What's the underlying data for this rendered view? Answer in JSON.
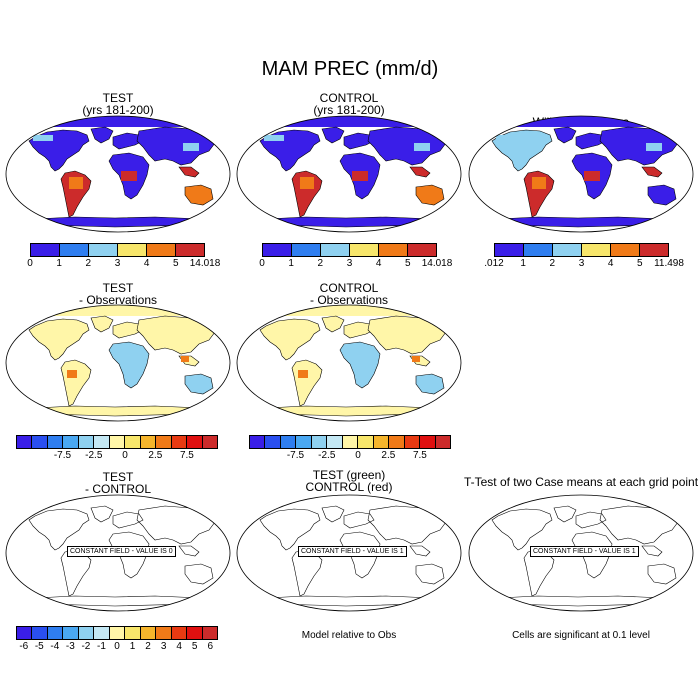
{
  "main_title": "MAM PREC (mm/d)",
  "panels": {
    "test": {
      "title1": "TEST",
      "title2": "(yrs 181-200)"
    },
    "control": {
      "title1": "CONTROL",
      "title2": "(yrs 181-200)"
    },
    "obs": {
      "title1": "Willmott-Matsuura"
    },
    "test_obs": {
      "title1": "TEST",
      "title2": "- Observations"
    },
    "control_obs": {
      "title1": "CONTROL",
      "title2": "- Observations"
    },
    "test_control": {
      "title1": "TEST",
      "title2": "- CONTROL",
      "constant": "CONSTANT FIELD - VALUE IS 0"
    },
    "green_red": {
      "title1": "TEST (green)",
      "title2": "CONTROL (red)",
      "constant": "CONSTANT FIELD - VALUE IS 1",
      "note": "Model relative to Obs"
    },
    "ttest": {
      "title1": "T-Test of two Case means at each grid point",
      "constant": "CONSTANT FIELD - VALUE IS 1",
      "note": "Cells are significant at 0.1 level"
    }
  },
  "colorbars": {
    "abs_colors": [
      "#3a1ee8",
      "#2f7ef0",
      "#8fd1f0",
      "#f7e66b",
      "#f07a18",
      "#cc2b2b"
    ],
    "test_labels": [
      "0",
      "1",
      "2",
      "3",
      "4",
      "5",
      "14.018"
    ],
    "control_labels": [
      "0",
      "1",
      "2",
      "3",
      "4",
      "5",
      "14.018"
    ],
    "obs_labels": [
      ".012",
      "1",
      "2",
      "3",
      "4",
      "5",
      "11.498"
    ],
    "diff_colors": [
      "#3a1ee8",
      "#2a4ff0",
      "#2f7ef0",
      "#4aa8f2",
      "#8fd1f0",
      "#c4e8f4",
      "#fff6a8",
      "#f7e66b",
      "#f5b52c",
      "#f07a18",
      "#e83a12",
      "#e01010",
      "#cc2b2b"
    ],
    "diff_labels": [
      "-7.5",
      "-2.5",
      "0",
      "2.5",
      "7.5"
    ],
    "tc_colors": [
      "#3a1ee8",
      "#2a4ff0",
      "#2f7ef0",
      "#4aa8f2",
      "#8fd1f0",
      "#c4e8f4",
      "#fff6a8",
      "#f7e66b",
      "#f5b52c",
      "#f07a18",
      "#e83a12",
      "#e01010",
      "#cc2b2b"
    ],
    "tc_labels": [
      "-6",
      "-5",
      "-4",
      "-3",
      "-2",
      "-1",
      "0",
      "1",
      "2",
      "3",
      "4",
      "5",
      "6"
    ]
  },
  "land_colors": {
    "polar": "#3a1ee8",
    "dry": "#3a1ee8",
    "wet": "#cc2b2b",
    "medium": "#f07a18",
    "light": "#8fd1f0",
    "diff_base": "#fff6a8",
    "diff_cool": "#8fd1f0"
  }
}
